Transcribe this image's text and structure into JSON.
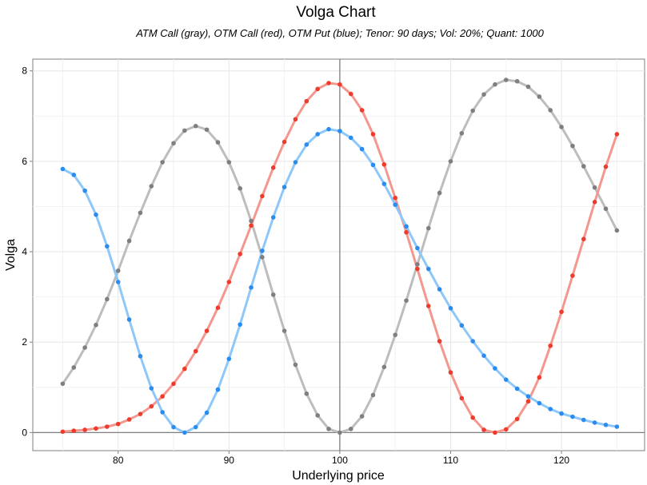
{
  "chart_data": {
    "type": "line",
    "title": "Volga Chart",
    "subtitle": "ATM Call (gray), OTM Call (red), OTM Put (blue); Tenor: 90 days; Vol: 20%; Quant: 1000",
    "xlabel": "Underlying price",
    "ylabel": "Volga",
    "xlim": [
      72.3,
      127.5
    ],
    "ylim": [
      -0.4,
      8.26
    ],
    "x_ticks": [
      80,
      90,
      100,
      110,
      120
    ],
    "y_ticks": [
      0,
      2,
      4,
      6,
      8
    ],
    "grid": true,
    "vline_x": 100,
    "hline_y": 0,
    "series": [
      {
        "name": "ATM Call",
        "color": "#a9a9a9",
        "line_color": "#bdbdbd",
        "point_color": "#7f7f7f",
        "x": [
          75,
          76,
          77,
          78,
          79,
          80,
          81,
          82,
          83,
          84,
          85,
          86,
          87,
          88,
          89,
          90,
          91,
          92,
          93,
          94,
          95,
          96,
          97,
          98,
          99,
          100,
          101,
          102,
          103,
          104,
          105,
          106,
          107,
          108,
          109,
          110,
          111,
          112,
          113,
          114,
          115,
          116,
          117,
          118,
          119,
          120,
          121,
          122,
          123,
          124,
          125
        ],
        "y": [
          1.08,
          1.44,
          1.88,
          2.38,
          2.95,
          3.58,
          4.24,
          4.86,
          5.45,
          5.98,
          6.4,
          6.68,
          6.78,
          6.7,
          6.42,
          5.98,
          5.4,
          4.68,
          3.88,
          3.05,
          2.25,
          1.5,
          0.86,
          0.38,
          0.08,
          0.0,
          0.08,
          0.36,
          0.83,
          1.45,
          2.16,
          2.92,
          3.72,
          4.52,
          5.3,
          6.0,
          6.62,
          7.12,
          7.48,
          7.7,
          7.8,
          7.77,
          7.65,
          7.43,
          7.13,
          6.76,
          6.34,
          5.89,
          5.42,
          4.95,
          4.47
        ]
      },
      {
        "name": "OTM Call",
        "color": "#ef3b2c",
        "line_color": "#f4978e",
        "point_color": "#ef3b2c",
        "x": [
          75,
          76,
          77,
          78,
          79,
          80,
          81,
          82,
          83,
          84,
          85,
          86,
          87,
          88,
          89,
          90,
          91,
          92,
          93,
          94,
          95,
          96,
          97,
          98,
          99,
          100,
          101,
          102,
          103,
          104,
          105,
          106,
          107,
          108,
          109,
          110,
          111,
          112,
          113,
          114,
          115,
          116,
          117,
          118,
          119,
          120,
          121,
          122,
          123,
          124,
          125
        ],
        "y": [
          0.02,
          0.04,
          0.06,
          0.09,
          0.13,
          0.19,
          0.29,
          0.41,
          0.58,
          0.8,
          1.08,
          1.41,
          1.8,
          2.25,
          2.76,
          3.33,
          3.95,
          4.58,
          5.23,
          5.86,
          6.43,
          6.93,
          7.33,
          7.6,
          7.73,
          7.7,
          7.49,
          7.13,
          6.6,
          5.93,
          5.19,
          4.43,
          3.62,
          2.8,
          2.02,
          1.33,
          0.76,
          0.33,
          0.06,
          0.0,
          0.07,
          0.3,
          0.69,
          1.22,
          1.92,
          2.67,
          3.47,
          4.28,
          5.1,
          5.88,
          6.6
        ]
      },
      {
        "name": "OTM Put",
        "color": "#2b8cf0",
        "line_color": "#8ec8fa",
        "point_color": "#2b8cf0",
        "x": [
          75,
          76,
          77,
          78,
          79,
          80,
          81,
          82,
          83,
          84,
          85,
          86,
          87,
          88,
          89,
          90,
          91,
          92,
          93,
          94,
          95,
          96,
          97,
          98,
          99,
          100,
          101,
          102,
          103,
          104,
          105,
          106,
          107,
          108,
          109,
          110,
          111,
          112,
          113,
          114,
          115,
          116,
          117,
          118,
          119,
          120,
          121,
          122,
          123,
          124,
          125
        ],
        "y": [
          5.83,
          5.7,
          5.35,
          4.82,
          4.12,
          3.33,
          2.5,
          1.69,
          0.98,
          0.45,
          0.12,
          0.0,
          0.12,
          0.44,
          0.95,
          1.63,
          2.39,
          3.21,
          4.02,
          4.76,
          5.43,
          5.98,
          6.37,
          6.6,
          6.71,
          6.67,
          6.52,
          6.27,
          5.92,
          5.5,
          5.04,
          4.56,
          4.08,
          3.62,
          3.17,
          2.75,
          2.37,
          2.02,
          1.7,
          1.42,
          1.17,
          0.97,
          0.8,
          0.65,
          0.52,
          0.42,
          0.35,
          0.28,
          0.22,
          0.17,
          0.13
        ]
      }
    ]
  }
}
